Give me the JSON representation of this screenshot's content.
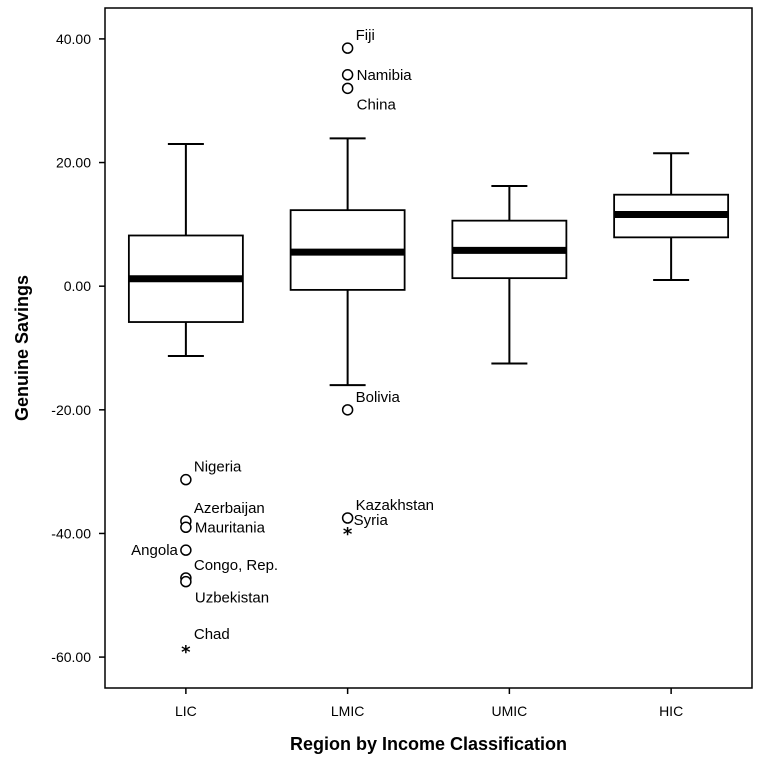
{
  "chart_data": {
    "type": "boxplot",
    "xlabel": "Region by Income Classification",
    "ylabel": "Genuine Savings",
    "ylim": [
      -65,
      45
    ],
    "yticks": [
      40,
      20,
      0,
      -20,
      -40,
      -60
    ],
    "ytick_labels": [
      "40.00",
      "20.00",
      "0.00",
      "-20.00",
      "-40.00",
      "-60.00"
    ],
    "grid": false,
    "categories": [
      "LIC",
      "LMIC",
      "UMIC",
      "HIC"
    ],
    "boxes": [
      {
        "category": "LIC",
        "whisker_low": -11.3,
        "q1": -5.8,
        "median": 1.2,
        "q3": 8.2,
        "whisker_high": 23.0
      },
      {
        "category": "LMIC",
        "whisker_low": -16.0,
        "q1": -0.6,
        "median": 5.5,
        "q3": 12.3,
        "whisker_high": 23.9
      },
      {
        "category": "UMIC",
        "whisker_low": -12.5,
        "q1": 1.3,
        "median": 5.8,
        "q3": 10.6,
        "whisker_high": 16.2
      },
      {
        "category": "HIC",
        "whisker_low": 1.0,
        "q1": 7.9,
        "median": 11.6,
        "q3": 14.8,
        "whisker_high": 21.5
      }
    ],
    "outliers": [
      {
        "category": "LMIC",
        "value": 38.5,
        "marker": "circle",
        "label": "Fiji",
        "label_pos": "above-right"
      },
      {
        "category": "LMIC",
        "value": 34.2,
        "marker": "circle",
        "label": "Namibia",
        "label_pos": "right"
      },
      {
        "category": "LMIC",
        "value": 32.0,
        "marker": "circle",
        "label": "China",
        "label_pos": "below-right"
      },
      {
        "category": "LMIC",
        "value": -20.0,
        "marker": "circle",
        "label": "Bolivia",
        "label_pos": "above-right"
      },
      {
        "category": "LMIC",
        "value": -37.5,
        "marker": "circle",
        "label": "Kazakhstan",
        "label_pos": "above-right"
      },
      {
        "category": "LMIC",
        "value": -39.3,
        "marker": "star",
        "label": "Syria",
        "label_pos": "right-high"
      },
      {
        "category": "LIC",
        "value": -31.3,
        "marker": "circle",
        "label": "Nigeria",
        "label_pos": "above-right"
      },
      {
        "category": "LIC",
        "value": -38.0,
        "marker": "circle",
        "label": "Azerbaijan",
        "label_pos": "above-right"
      },
      {
        "category": "LIC",
        "value": -39.0,
        "marker": "circle",
        "label": "Mauritania",
        "label_pos": "right"
      },
      {
        "category": "LIC",
        "value": -42.7,
        "marker": "circle",
        "label": "Angola",
        "label_pos": "left"
      },
      {
        "category": "LIC",
        "value": -47.2,
        "marker": "circle",
        "label": "Congo, Rep.",
        "label_pos": "above-right"
      },
      {
        "category": "LIC",
        "value": -47.8,
        "marker": "circle",
        "label": "Uzbekistan",
        "label_pos": "below-right"
      },
      {
        "category": "LIC",
        "value": -58.4,
        "marker": "star",
        "label": "Chad",
        "label_pos": "above-right"
      }
    ]
  }
}
